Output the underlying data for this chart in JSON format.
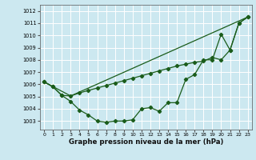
{
  "xlabel": "Graphe pression niveau de la mer (hPa)",
  "xlim": [
    -0.5,
    23.5
  ],
  "ylim": [
    1002.3,
    1012.5
  ],
  "yticks": [
    1003,
    1004,
    1005,
    1006,
    1007,
    1008,
    1009,
    1010,
    1011,
    1012
  ],
  "xticks": [
    0,
    1,
    2,
    3,
    4,
    5,
    6,
    7,
    8,
    9,
    10,
    11,
    12,
    13,
    14,
    15,
    16,
    17,
    18,
    19,
    20,
    21,
    22,
    23
  ],
  "bg_color": "#cce8f0",
  "grid_color": "#ffffff",
  "line_color": "#1a5c1a",
  "line1_x": [
    0,
    1,
    2,
    3,
    4,
    5,
    6,
    7,
    8,
    9,
    10,
    11,
    12,
    13,
    14,
    15,
    16,
    17,
    18,
    19,
    20,
    21,
    22,
    23
  ],
  "line1_y": [
    1006.2,
    1005.8,
    1005.1,
    1004.6,
    1003.9,
    1003.5,
    1003.0,
    1002.9,
    1003.0,
    1003.0,
    1003.1,
    1004.0,
    1004.1,
    1003.8,
    1004.5,
    1004.5,
    1006.4,
    1006.8,
    1008.0,
    1008.0,
    1010.1,
    1008.8,
    1011.0,
    1011.5
  ],
  "line2_x": [
    0,
    1,
    2,
    3,
    4,
    5,
    6,
    7,
    8,
    9,
    10,
    11,
    12,
    13,
    14,
    15,
    16,
    17,
    18,
    19,
    20,
    21,
    22,
    23
  ],
  "line2_y": [
    1006.2,
    1005.8,
    1005.1,
    1005.05,
    1005.3,
    1005.5,
    1005.7,
    1005.9,
    1006.1,
    1006.3,
    1006.5,
    1006.7,
    1006.9,
    1007.1,
    1007.3,
    1007.5,
    1007.65,
    1007.8,
    1007.9,
    1008.2,
    1008.0,
    1008.8,
    1011.0,
    1011.5
  ],
  "line3_x": [
    0,
    3,
    23
  ],
  "line3_y": [
    1006.2,
    1005.05,
    1011.5
  ],
  "marker": "D",
  "markersize": 2.2,
  "linewidth": 0.9
}
